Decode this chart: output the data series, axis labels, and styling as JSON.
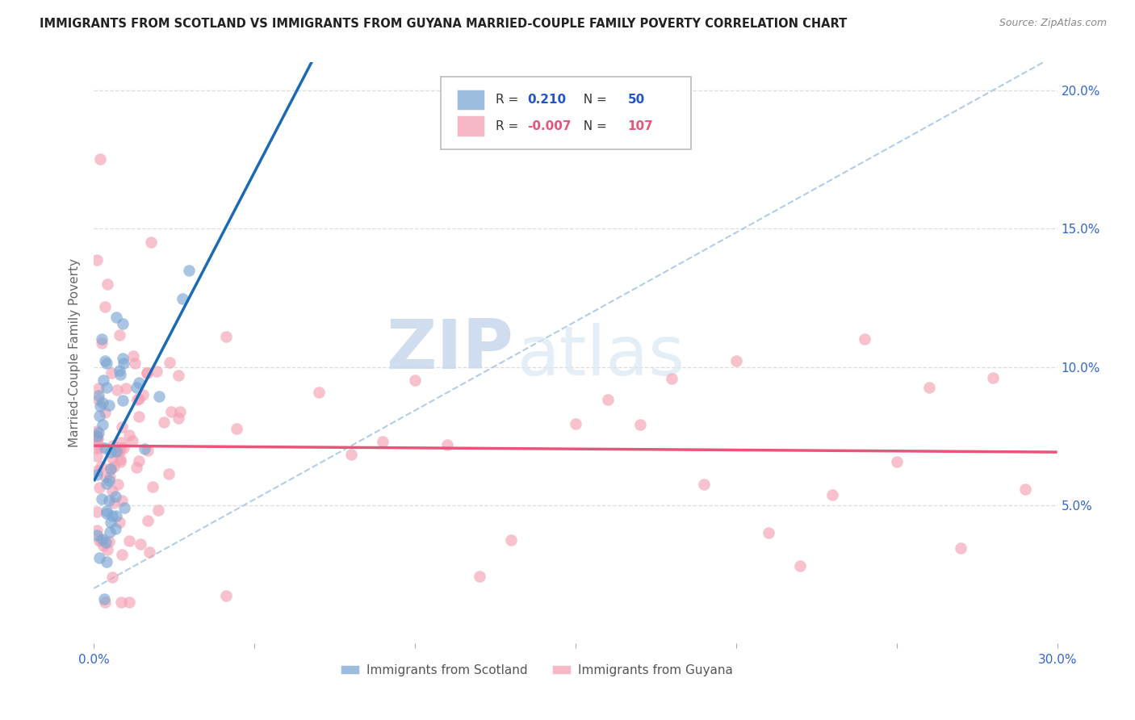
{
  "title": "IMMIGRANTS FROM SCOTLAND VS IMMIGRANTS FROM GUYANA MARRIED-COUPLE FAMILY POVERTY CORRELATION CHART",
  "source": "Source: ZipAtlas.com",
  "ylabel": "Married-Couple Family Poverty",
  "xlim": [
    0.0,
    0.3
  ],
  "ylim": [
    0.0,
    0.21
  ],
  "xticks": [
    0.0,
    0.05,
    0.1,
    0.15,
    0.2,
    0.25,
    0.3
  ],
  "yticks": [
    0.05,
    0.1,
    0.15,
    0.2
  ],
  "scotland_color": "#7ba7d4",
  "guyana_color": "#f4a0b5",
  "scotland_line_color": "#1a6ab5",
  "guyana_line_color": "#e8547a",
  "dashed_line_color": "#a8c8e8",
  "scotland_R": 0.21,
  "scotland_N": 50,
  "guyana_R": -0.007,
  "guyana_N": 107,
  "watermark_zip": "ZIP",
  "watermark_atlas": "atlas",
  "legend_scotland": "Immigrants from Scotland",
  "legend_guyana": "Immigrants from Guyana",
  "grid_color": "#dddddd",
  "axis_label_color": "#3366cc",
  "ylabel_color": "#666666",
  "title_color": "#222222",
  "source_color": "#888888"
}
